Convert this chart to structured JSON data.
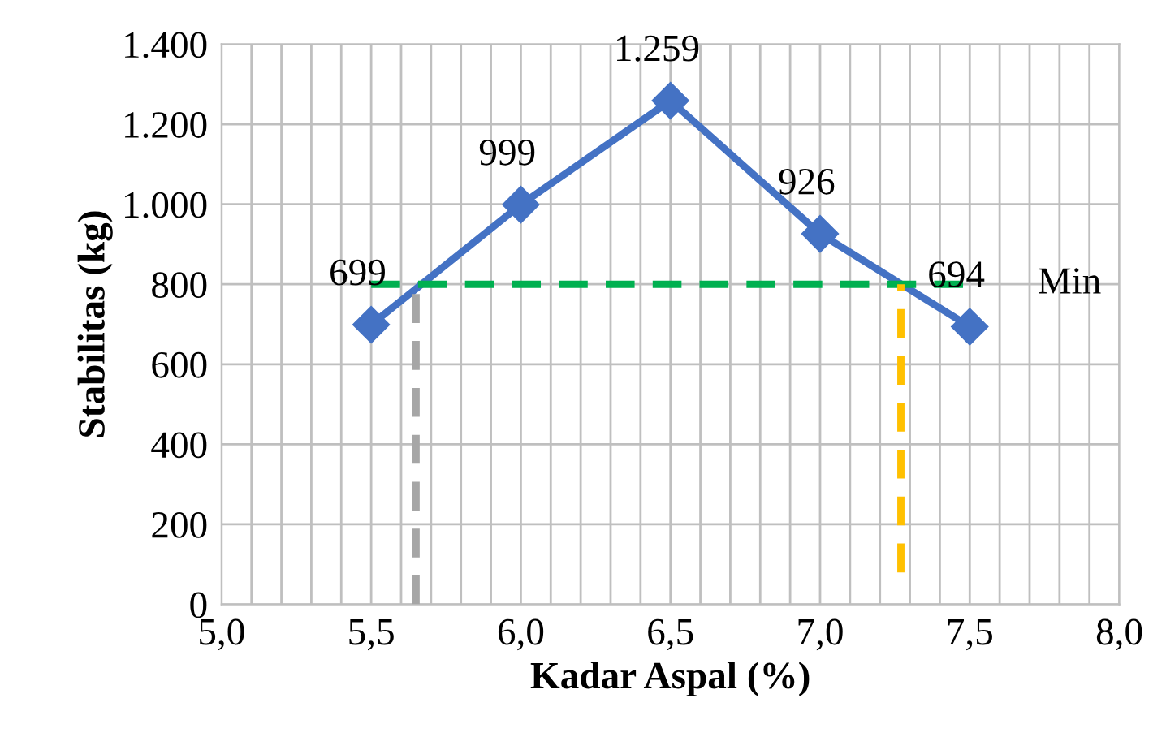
{
  "chart_data": {
    "type": "line",
    "xlabel": "Kadar Aspal (%)",
    "ylabel": "Stabilitas (kg)",
    "xlim": [
      5.0,
      8.0
    ],
    "xticks": [
      {
        "value": 5.0,
        "label": "5,0"
      },
      {
        "value": 5.1,
        "label": null
      },
      {
        "value": 5.2,
        "label": null
      },
      {
        "value": 5.3,
        "label": null
      },
      {
        "value": 5.4,
        "label": null
      },
      {
        "value": 5.5,
        "label": "5,5"
      },
      {
        "value": 5.6,
        "label": null
      },
      {
        "value": 5.7,
        "label": null
      },
      {
        "value": 5.8,
        "label": null
      },
      {
        "value": 5.9,
        "label": null
      },
      {
        "value": 6.0,
        "label": "6,0"
      },
      {
        "value": 6.1,
        "label": null
      },
      {
        "value": 6.2,
        "label": null
      },
      {
        "value": 6.3,
        "label": null
      },
      {
        "value": 6.4,
        "label": null
      },
      {
        "value": 6.5,
        "label": "6,5"
      },
      {
        "value": 6.6,
        "label": null
      },
      {
        "value": 6.7,
        "label": null
      },
      {
        "value": 6.8,
        "label": null
      },
      {
        "value": 6.9,
        "label": null
      },
      {
        "value": 7.0,
        "label": "7,0"
      },
      {
        "value": 7.1,
        "label": null
      },
      {
        "value": 7.2,
        "label": null
      },
      {
        "value": 7.3,
        "label": null
      },
      {
        "value": 7.4,
        "label": null
      },
      {
        "value": 7.5,
        "label": "7,5"
      },
      {
        "value": 7.6,
        "label": null
      },
      {
        "value": 7.7,
        "label": null
      },
      {
        "value": 7.8,
        "label": null
      },
      {
        "value": 7.9,
        "label": null
      },
      {
        "value": 8.0,
        "label": "8,0"
      }
    ],
    "ylim": [
      0,
      1400
    ],
    "yticks": [
      0,
      200,
      400,
      600,
      800,
      {
        "value": 1000,
        "label": "1.000"
      },
      {
        "value": 1200,
        "label": "1.200"
      },
      {
        "value": 1400,
        "label": "1.400"
      }
    ],
    "grid": true,
    "legend": false,
    "series": [
      {
        "color": "#4472c4",
        "marker": "diamond",
        "line_style": "solid",
        "x": [
          5.5,
          6.0,
          6.5,
          7.0,
          7.5
        ],
        "values": [
          699,
          999,
          1259,
          926,
          694
        ],
        "value_labels": [
          "699",
          "999",
          "1.259",
          "926",
          "694"
        ]
      },
      {
        "color": "#00b050",
        "marker": "none",
        "line_style": "dashed",
        "x": [
          5.5,
          7.5
        ],
        "values": [
          800,
          800
        ]
      },
      {
        "color": "#a6a6a6",
        "marker": "none",
        "line_style": "dashed",
        "x": [
          5.65,
          5.65
        ],
        "values": [
          0,
          800
        ]
      },
      {
        "color": "#ffc000",
        "marker": "none",
        "line_style": "dashed",
        "x": [
          7.27,
          7.27
        ],
        "values": [
          80,
          800
        ]
      }
    ],
    "annotations": [
      {
        "text": "Min",
        "x": 7.5,
        "y": 800
      }
    ]
  }
}
